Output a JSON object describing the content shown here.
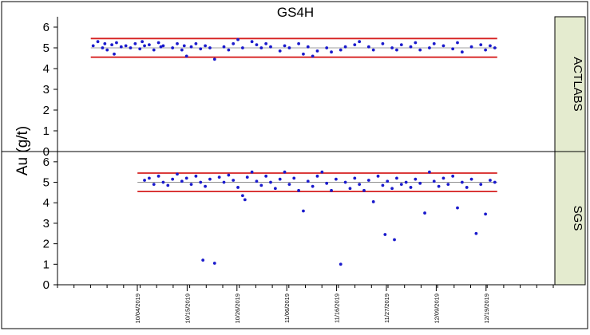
{
  "chart_data": {
    "type": "scatter",
    "title": "GS4H",
    "ylabel": "Au (g/t)",
    "xlabel": "",
    "grid": false,
    "x_ticks": [
      "10/04/2019",
      "10/15/2019",
      "10/26/2019",
      "11/06/2019",
      "11/16/2019",
      "11/27/2019",
      "12/09/2019",
      "12/19/2019"
    ],
    "colors": {
      "points": "#1a1acc",
      "limits": "#d62020",
      "center": "#808080",
      "strip": "#e4ebcf"
    },
    "panels": [
      {
        "name": "ACTLABS",
        "ylim": [
          0,
          6.5
        ],
        "yticks": [
          "0",
          "1",
          "2",
          "3",
          "4",
          "5",
          "6"
        ],
        "upper_limit": 5.45,
        "lower_limit": 4.55,
        "center": 5.0,
        "x_range": [
          0.02,
          0.88
        ],
        "points": [
          [
            0.02,
            5.1
          ],
          [
            0.03,
            5.3
          ],
          [
            0.04,
            5.0
          ],
          [
            0.045,
            5.2
          ],
          [
            0.05,
            4.9
          ],
          [
            0.06,
            5.15
          ],
          [
            0.065,
            4.7
          ],
          [
            0.07,
            5.25
          ],
          [
            0.08,
            5.05
          ],
          [
            0.09,
            5.1
          ],
          [
            0.1,
            5.0
          ],
          [
            0.11,
            5.2
          ],
          [
            0.12,
            4.95
          ],
          [
            0.125,
            5.3
          ],
          [
            0.13,
            5.1
          ],
          [
            0.14,
            5.15
          ],
          [
            0.15,
            4.9
          ],
          [
            0.16,
            5.25
          ],
          [
            0.165,
            5.05
          ],
          [
            0.17,
            5.1
          ],
          [
            0.19,
            5.0
          ],
          [
            0.2,
            5.2
          ],
          [
            0.21,
            4.9
          ],
          [
            0.215,
            5.1
          ],
          [
            0.22,
            4.6
          ],
          [
            0.23,
            5.05
          ],
          [
            0.24,
            5.2
          ],
          [
            0.25,
            4.95
          ],
          [
            0.26,
            5.1
          ],
          [
            0.27,
            5.0
          ],
          [
            0.28,
            4.45
          ],
          [
            0.3,
            5.05
          ],
          [
            0.31,
            4.9
          ],
          [
            0.32,
            5.2
          ],
          [
            0.33,
            5.4
          ],
          [
            0.34,
            5.0
          ],
          [
            0.36,
            5.3
          ],
          [
            0.37,
            5.15
          ],
          [
            0.38,
            5.0
          ],
          [
            0.39,
            5.2
          ],
          [
            0.4,
            5.05
          ],
          [
            0.42,
            4.85
          ],
          [
            0.43,
            5.1
          ],
          [
            0.44,
            5.0
          ],
          [
            0.46,
            5.2
          ],
          [
            0.47,
            4.7
          ],
          [
            0.48,
            5.05
          ],
          [
            0.49,
            4.6
          ],
          [
            0.5,
            4.85
          ],
          [
            0.52,
            5.0
          ],
          [
            0.53,
            4.8
          ],
          [
            0.55,
            4.9
          ],
          [
            0.56,
            5.05
          ],
          [
            0.58,
            5.15
          ],
          [
            0.59,
            5.3
          ],
          [
            0.61,
            5.05
          ],
          [
            0.62,
            4.9
          ],
          [
            0.64,
            5.2
          ],
          [
            0.66,
            5.0
          ],
          [
            0.67,
            4.9
          ],
          [
            0.68,
            5.15
          ],
          [
            0.7,
            5.05
          ],
          [
            0.71,
            5.25
          ],
          [
            0.72,
            4.9
          ],
          [
            0.74,
            5.0
          ],
          [
            0.75,
            5.2
          ],
          [
            0.77,
            5.1
          ],
          [
            0.79,
            4.95
          ],
          [
            0.8,
            5.25
          ],
          [
            0.81,
            4.8
          ],
          [
            0.83,
            5.05
          ],
          [
            0.85,
            5.15
          ],
          [
            0.86,
            4.9
          ],
          [
            0.87,
            5.1
          ],
          [
            0.88,
            5.0
          ]
        ]
      },
      {
        "name": "SGS",
        "ylim": [
          0,
          6.5
        ],
        "yticks": [
          "0",
          "1",
          "2",
          "3",
          "4",
          "5",
          "6"
        ],
        "upper_limit": 5.45,
        "lower_limit": 4.55,
        "center": 5.0,
        "x_range": [
          0.12,
          0.88
        ],
        "points": [
          [
            0.13,
            5.1
          ],
          [
            0.14,
            5.2
          ],
          [
            0.15,
            4.9
          ],
          [
            0.16,
            5.3
          ],
          [
            0.17,
            5.0
          ],
          [
            0.18,
            4.85
          ],
          [
            0.19,
            5.15
          ],
          [
            0.2,
            5.4
          ],
          [
            0.21,
            5.05
          ],
          [
            0.22,
            5.2
          ],
          [
            0.23,
            4.9
          ],
          [
            0.24,
            5.3
          ],
          [
            0.25,
            5.0
          ],
          [
            0.255,
            1.2
          ],
          [
            0.26,
            4.8
          ],
          [
            0.27,
            5.15
          ],
          [
            0.28,
            1.05
          ],
          [
            0.29,
            5.25
          ],
          [
            0.3,
            5.0
          ],
          [
            0.31,
            5.35
          ],
          [
            0.32,
            5.1
          ],
          [
            0.33,
            4.75
          ],
          [
            0.34,
            4.35
          ],
          [
            0.345,
            4.15
          ],
          [
            0.35,
            5.25
          ],
          [
            0.36,
            5.5
          ],
          [
            0.37,
            5.05
          ],
          [
            0.38,
            4.85
          ],
          [
            0.39,
            5.3
          ],
          [
            0.4,
            5.0
          ],
          [
            0.41,
            4.7
          ],
          [
            0.42,
            5.15
          ],
          [
            0.43,
            5.5
          ],
          [
            0.44,
            4.9
          ],
          [
            0.45,
            5.2
          ],
          [
            0.46,
            4.6
          ],
          [
            0.47,
            3.6
          ],
          [
            0.48,
            5.05
          ],
          [
            0.49,
            4.8
          ],
          [
            0.5,
            5.3
          ],
          [
            0.51,
            5.5
          ],
          [
            0.52,
            4.95
          ],
          [
            0.53,
            4.6
          ],
          [
            0.54,
            5.15
          ],
          [
            0.55,
            1.0
          ],
          [
            0.56,
            5.0
          ],
          [
            0.57,
            4.7
          ],
          [
            0.58,
            5.2
          ],
          [
            0.59,
            4.9
          ],
          [
            0.6,
            4.6
          ],
          [
            0.61,
            5.1
          ],
          [
            0.62,
            4.05
          ],
          [
            0.63,
            5.3
          ],
          [
            0.64,
            4.85
          ],
          [
            0.645,
            2.45
          ],
          [
            0.65,
            5.05
          ],
          [
            0.66,
            4.7
          ],
          [
            0.665,
            2.2
          ],
          [
            0.67,
            5.2
          ],
          [
            0.68,
            4.9
          ],
          [
            0.69,
            5.0
          ],
          [
            0.7,
            4.75
          ],
          [
            0.71,
            5.15
          ],
          [
            0.72,
            4.95
          ],
          [
            0.73,
            3.5
          ],
          [
            0.74,
            5.5
          ],
          [
            0.75,
            5.05
          ],
          [
            0.76,
            4.8
          ],
          [
            0.77,
            5.2
          ],
          [
            0.78,
            4.9
          ],
          [
            0.79,
            5.3
          ],
          [
            0.8,
            3.75
          ],
          [
            0.81,
            5.0
          ],
          [
            0.82,
            4.75
          ],
          [
            0.83,
            5.15
          ],
          [
            0.84,
            2.5
          ],
          [
            0.85,
            4.9
          ],
          [
            0.86,
            3.45
          ],
          [
            0.87,
            5.1
          ],
          [
            0.88,
            5.0
          ]
        ]
      }
    ]
  }
}
